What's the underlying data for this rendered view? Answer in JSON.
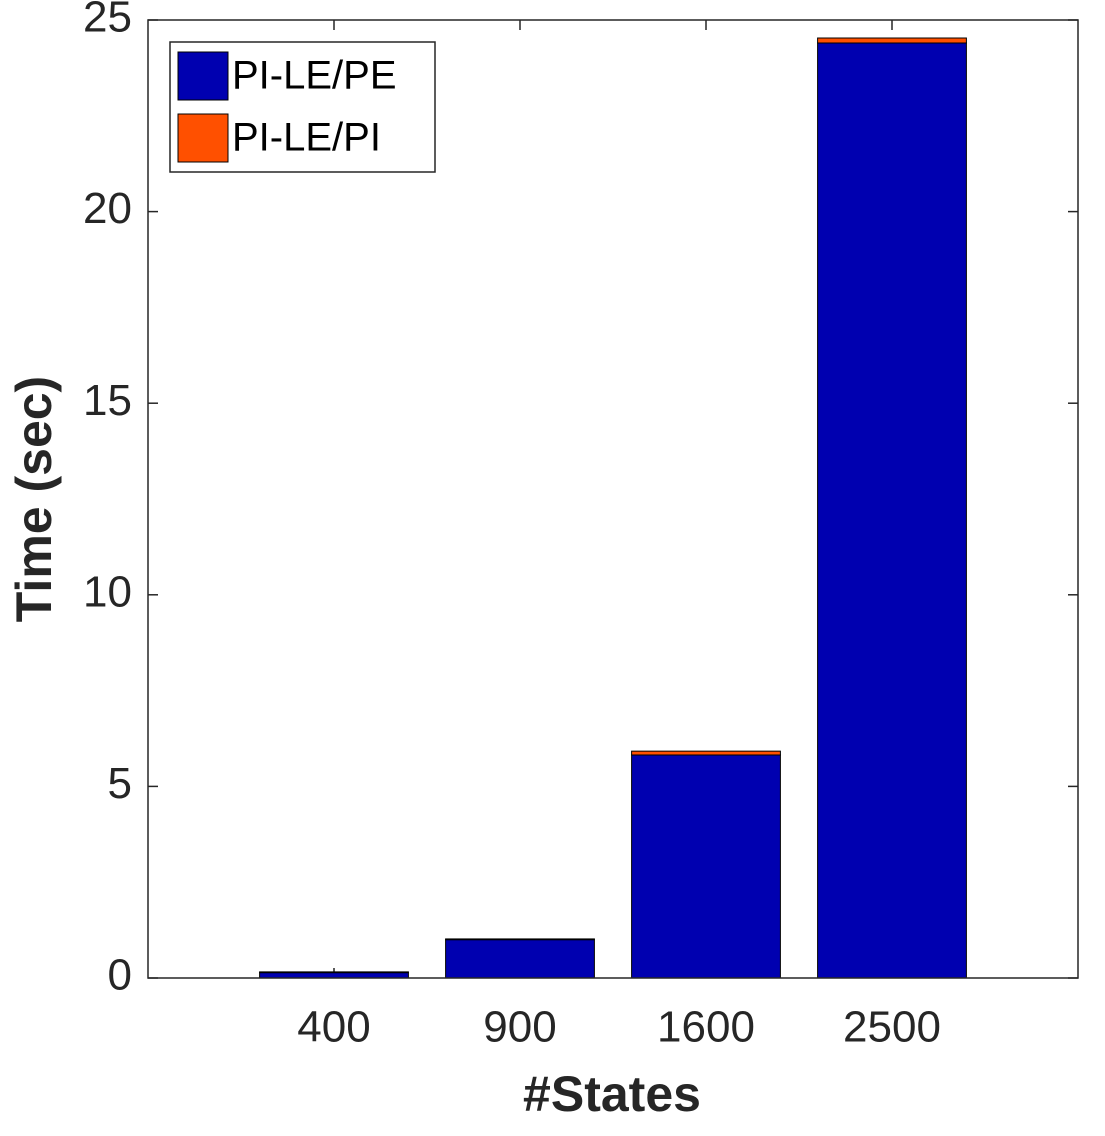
{
  "chart_data": {
    "type": "stacked_bar",
    "x_label": "#States",
    "y_label": "Time (sec)",
    "categories": [
      "400",
      "900",
      "1600",
      "2500"
    ],
    "series": [
      {
        "name": "PI-LE/PE",
        "color": "#0000b0",
        "values": [
          0.14,
          1.0,
          5.82,
          24.4
        ]
      },
      {
        "name": "PI-LE/PI",
        "color": "#ff5000",
        "values": [
          0.02,
          0.02,
          0.1,
          0.13
        ]
      }
    ],
    "ylim": [
      0,
      25
    ],
    "yticks": [
      0,
      5,
      10,
      15,
      20,
      25
    ],
    "legend": "upper-left"
  }
}
